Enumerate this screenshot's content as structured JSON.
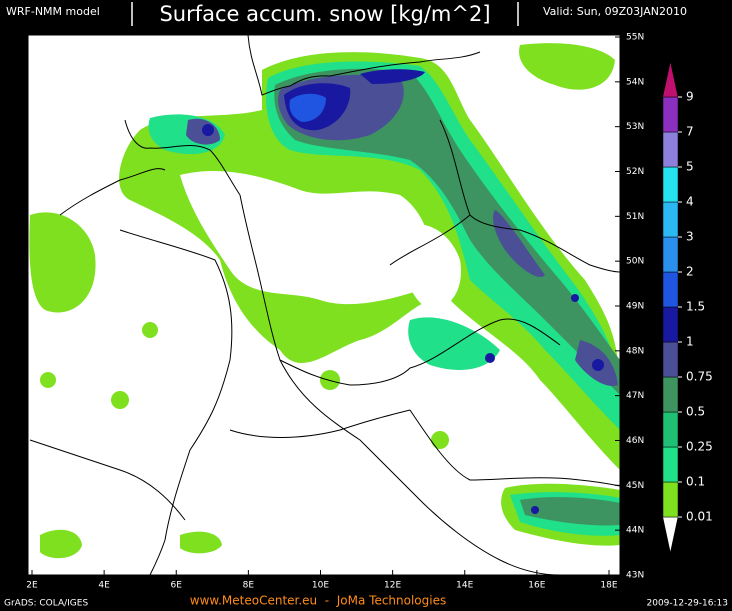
{
  "header": {
    "model": "WRF-NMM model",
    "title": "Surface accum. snow [kg/m^2]",
    "valid": "Valid: Sun, 09Z03JAN2010"
  },
  "map": {
    "lon_labels": [
      "2E",
      "4E",
      "6E",
      "8E",
      "10E",
      "12E",
      "14E",
      "16E",
      "18E"
    ],
    "lat_labels": [
      "55N",
      "54N",
      "53N",
      "52N",
      "51N",
      "50N",
      "49N",
      "48N",
      "47N",
      "46N",
      "45N",
      "44N",
      "43N"
    ]
  },
  "colorbar": {
    "levels": [
      0.01,
      0.1,
      0.25,
      0.5,
      0.75,
      1,
      1.5,
      2,
      3,
      4,
      5,
      7,
      9
    ],
    "colors": [
      "#ffffff",
      "#7fe020",
      "#20e08a",
      "#1fbf74",
      "#3d9460",
      "#4a4f96",
      "#1818a0",
      "#1f55e0",
      "#2b8fee",
      "#2cb8f2",
      "#26e2f0",
      "#8c80dc",
      "#8a2fc0",
      "#e35fe0",
      "#c0106e"
    ]
  },
  "footer": {
    "left": "GrADS: COLA/IGES",
    "center": "www.MeteoCenter.eu  -  JoMa Technologies",
    "right": "2009-12-29-16:13"
  }
}
